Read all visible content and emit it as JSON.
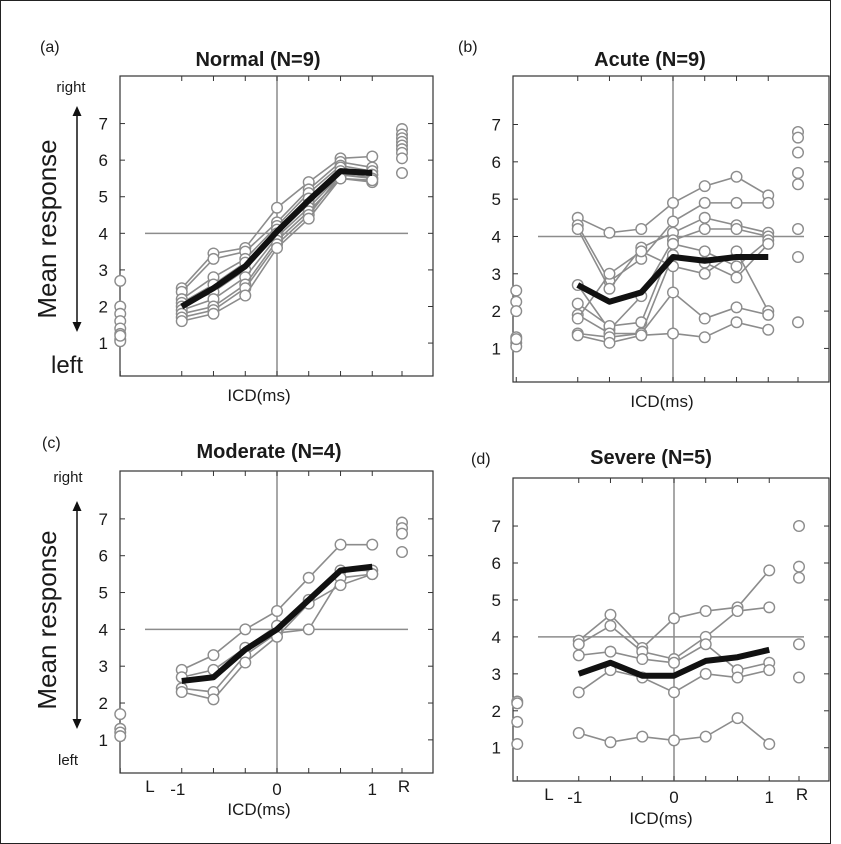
{
  "figure": {
    "y_axis_title": "Mean response",
    "right_label": "right",
    "left_label": "left",
    "x_label": "ICD(ms)",
    "L_label": "L",
    "R_label": "R"
  },
  "chart_data": [
    {
      "type": "line",
      "panel": "(a)",
      "title": "Normal (N=9)",
      "xlabel": "ICD(ms)",
      "ylabel": "Mean response",
      "x": [
        -1,
        -0.667,
        -0.333,
        0,
        0.333,
        0.667,
        1
      ],
      "x_ticks": [],
      "y_ticks": [
        1,
        2,
        3,
        4,
        5,
        6,
        7
      ],
      "ylim": [
        0.1,
        8.3
      ],
      "grid": false,
      "reference_lines": {
        "y": 4,
        "x": 0
      },
      "mean": [
        2.0,
        2.5,
        3.1,
        4.05,
        4.9,
        5.7,
        5.65
      ],
      "subjects": [
        [
          2.5,
          3.45,
          3.6,
          4.7,
          5.4,
          6.05,
          6.1
        ],
        [
          2.4,
          3.3,
          3.5,
          4.3,
          5.2,
          5.95,
          5.8
        ],
        [
          2.2,
          2.8,
          3.3,
          4.2,
          5.1,
          5.85,
          5.7
        ],
        [
          2.1,
          2.6,
          3.2,
          4.1,
          4.95,
          5.8,
          5.6
        ],
        [
          2.0,
          2.4,
          3.0,
          4.0,
          4.8,
          5.7,
          5.5
        ],
        [
          1.9,
          2.2,
          2.8,
          3.9,
          4.7,
          5.6,
          5.6
        ],
        [
          1.8,
          2.0,
          2.6,
          3.8,
          4.6,
          5.5,
          5.4
        ],
        [
          1.7,
          1.9,
          2.5,
          3.7,
          4.5,
          5.6,
          5.5
        ],
        [
          1.6,
          1.8,
          2.3,
          3.6,
          4.4,
          5.5,
          5.45
        ]
      ],
      "L_points": [
        2.7,
        2.0,
        1.8,
        1.6,
        1.4,
        1.25,
        1.1,
        1.05,
        1.2
      ],
      "R_points": [
        6.85,
        6.7,
        6.6,
        6.5,
        6.4,
        6.3,
        6.2,
        6.05,
        5.65
      ]
    },
    {
      "type": "line",
      "panel": "(b)",
      "title": "Acute (N=9)",
      "xlabel": "ICD(ms)",
      "ylabel": "",
      "x": [
        -1,
        -0.667,
        -0.333,
        0,
        0.333,
        0.667,
        1
      ],
      "x_ticks": [],
      "y_ticks": [
        1,
        2,
        3,
        4,
        5,
        6,
        7
      ],
      "ylim": [
        0.1,
        8.3
      ],
      "grid": false,
      "reference_lines": {
        "y": 4,
        "x": 0
      },
      "mean": [
        2.7,
        2.25,
        2.5,
        3.45,
        3.35,
        3.45,
        3.45
      ],
      "subjects": [
        [
          4.5,
          4.1,
          4.2,
          4.9,
          5.35,
          5.6,
          5.1
        ],
        [
          4.3,
          2.8,
          3.4,
          4.4,
          4.9,
          4.9,
          4.9
        ],
        [
          4.2,
          2.6,
          3.7,
          4.1,
          4.5,
          4.3,
          4.1
        ],
        [
          2.7,
          1.5,
          2.4,
          3.9,
          4.2,
          4.2,
          4.0
        ],
        [
          2.2,
          1.6,
          1.7,
          3.8,
          3.6,
          3.2,
          3.9
        ],
        [
          1.9,
          1.4,
          1.4,
          3.5,
          3.3,
          2.9,
          3.8
        ],
        [
          1.8,
          3.0,
          3.6,
          3.2,
          3.0,
          3.6,
          2.0
        ],
        [
          1.4,
          1.3,
          1.4,
          2.5,
          1.8,
          2.1,
          1.9
        ],
        [
          1.35,
          1.15,
          1.35,
          1.4,
          1.3,
          1.7,
          1.5
        ]
      ],
      "L_points": [
        2.55,
        2.25,
        2.0,
        1.3,
        1.15,
        1.05,
        1.25
      ],
      "R_points": [
        6.8,
        6.65,
        6.25,
        5.7,
        5.4,
        4.2,
        3.45,
        1.7
      ]
    },
    {
      "type": "line",
      "panel": "(c)",
      "title": "Moderate (N=4)",
      "xlabel": "ICD(ms)",
      "ylabel": "Mean response",
      "x": [
        -1,
        -0.667,
        -0.333,
        0,
        0.333,
        0.667,
        1
      ],
      "x_ticks": [
        "-1",
        "0",
        "1"
      ],
      "y_ticks": [
        1,
        2,
        3,
        4,
        5,
        6,
        7
      ],
      "ylim": [
        0.1,
        8.3
      ],
      "grid": false,
      "reference_lines": {
        "y": 4,
        "x": 0
      },
      "mean": [
        2.6,
        2.7,
        3.45,
        4.0,
        4.8,
        5.6,
        5.7
      ],
      "subjects": [
        [
          2.9,
          3.3,
          4.0,
          4.5,
          5.4,
          6.3,
          6.3
        ],
        [
          2.7,
          2.9,
          3.5,
          4.1,
          4.8,
          5.6,
          5.6
        ],
        [
          2.4,
          2.3,
          3.3,
          3.9,
          4.0,
          5.4,
          5.5
        ],
        [
          2.3,
          2.1,
          3.1,
          3.8,
          4.7,
          5.2,
          5.5
        ]
      ],
      "L_points": [
        1.7,
        1.3,
        1.2,
        1.1
      ],
      "R_points": [
        6.9,
        6.75,
        6.6,
        6.1
      ]
    },
    {
      "type": "line",
      "panel": "(d)",
      "title": "Severe (N=5)",
      "xlabel": "ICD(ms)",
      "ylabel": "",
      "x": [
        -1,
        -0.667,
        -0.333,
        0,
        0.333,
        0.667,
        1
      ],
      "x_ticks": [
        "-1",
        "0",
        "1"
      ],
      "y_ticks": [
        1,
        2,
        3,
        4,
        5,
        6,
        7
      ],
      "ylim": [
        0.1,
        8.3
      ],
      "grid": false,
      "reference_lines": {
        "y": 4,
        "x": 0
      },
      "mean": [
        3.0,
        3.3,
        2.95,
        2.95,
        3.35,
        3.45,
        3.65
      ],
      "subjects": [
        [
          3.9,
          4.6,
          3.7,
          4.5,
          4.7,
          4.8,
          5.8
        ],
        [
          3.8,
          4.3,
          3.6,
          3.4,
          4.0,
          4.7,
          4.8
        ],
        [
          3.5,
          3.6,
          3.4,
          3.3,
          3.8,
          3.1,
          3.3
        ],
        [
          2.5,
          3.1,
          2.9,
          2.5,
          3.0,
          2.9,
          3.1
        ],
        [
          1.4,
          1.15,
          1.3,
          1.2,
          1.3,
          1.8,
          1.1
        ]
      ],
      "L_points": [
        2.25,
        2.2,
        1.7,
        1.1
      ],
      "R_points": [
        7.0,
        5.9,
        5.6,
        3.8,
        2.9
      ]
    }
  ]
}
